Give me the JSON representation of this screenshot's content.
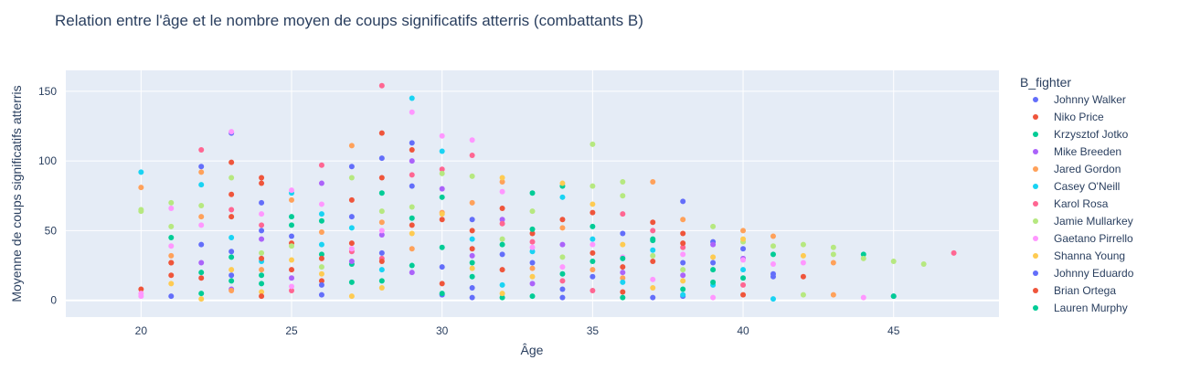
{
  "chart_data": {
    "type": "scatter",
    "title": "Relation entre l'âge et le nombre moyen de coups significatifs atterris (combattants B)",
    "xlabel": "Âge",
    "ylabel": "Moyenne de coups significatifs atterris",
    "xlim": [
      17.5,
      48.5
    ],
    "ylim": [
      -12,
      165
    ],
    "xticks": [
      20,
      25,
      30,
      35,
      40,
      45
    ],
    "yticks": [
      0,
      50,
      100,
      150
    ],
    "grid": true,
    "legend_title": "B_fighter",
    "legend_position": "right",
    "plot_background": "#e5ecf6",
    "series": [
      {
        "name": "Johnny Walker",
        "color": "#636efa",
        "points": [
          [
            21,
            3
          ],
          [
            22,
            96
          ],
          [
            23,
            120
          ],
          [
            23,
            18
          ],
          [
            26,
            4
          ],
          [
            27,
            96
          ],
          [
            28,
            102
          ],
          [
            29,
            113
          ],
          [
            31,
            9
          ],
          [
            34,
            2
          ],
          [
            38,
            71
          ],
          [
            38,
            3
          ],
          [
            39,
            42
          ],
          [
            41,
            19
          ],
          [
            45,
            3
          ],
          [
            30,
            4
          ],
          [
            24,
            70
          ]
        ]
      },
      {
        "name": "Niko Price",
        "color": "#ef553b",
        "points": [
          [
            20,
            8
          ],
          [
            21,
            27
          ],
          [
            21,
            18
          ],
          [
            23,
            99
          ],
          [
            23,
            76
          ],
          [
            24,
            88
          ],
          [
            24,
            84
          ],
          [
            25,
            41
          ],
          [
            28,
            120
          ],
          [
            28,
            88
          ],
          [
            29,
            108
          ],
          [
            30,
            58
          ],
          [
            31,
            50
          ],
          [
            32,
            22
          ],
          [
            35,
            34
          ],
          [
            36,
            6
          ],
          [
            37,
            28
          ],
          [
            38,
            48
          ],
          [
            40,
            4
          ],
          [
            42,
            17
          ],
          [
            26,
            14
          ],
          [
            27,
            41
          ]
        ]
      },
      {
        "name": "Krzysztof Jotko",
        "color": "#00cc96",
        "points": [
          [
            21,
            45
          ],
          [
            22,
            5
          ],
          [
            23,
            31
          ],
          [
            24,
            12
          ],
          [
            25,
            60
          ],
          [
            26,
            33
          ],
          [
            27,
            26
          ],
          [
            28,
            14
          ],
          [
            29,
            59
          ],
          [
            30,
            38
          ],
          [
            31,
            17
          ],
          [
            32,
            2
          ],
          [
            33,
            77
          ],
          [
            34,
            82
          ],
          [
            35,
            53
          ],
          [
            36,
            2
          ],
          [
            37,
            44
          ],
          [
            39,
            22
          ],
          [
            44,
            33
          ],
          [
            45,
            3
          ],
          [
            30,
            74
          ]
        ]
      },
      {
        "name": "Mike Breeden",
        "color": "#ab63fa",
        "points": [
          [
            22,
            27
          ],
          [
            23,
            8
          ],
          [
            24,
            44
          ],
          [
            25,
            16
          ],
          [
            26,
            84
          ],
          [
            27,
            28
          ],
          [
            28,
            47
          ],
          [
            29,
            100
          ],
          [
            30,
            80
          ],
          [
            31,
            32
          ],
          [
            32,
            58
          ],
          [
            33,
            12
          ],
          [
            34,
            40
          ],
          [
            36,
            20
          ],
          [
            38,
            18
          ],
          [
            39,
            40
          ],
          [
            40,
            30
          ],
          [
            29,
            20
          ]
        ]
      },
      {
        "name": "Jared Gordon",
        "color": "#ffa15a",
        "points": [
          [
            20,
            81
          ],
          [
            21,
            32
          ],
          [
            22,
            92
          ],
          [
            22,
            60
          ],
          [
            23,
            7
          ],
          [
            24,
            22
          ],
          [
            25,
            72
          ],
          [
            26,
            49
          ],
          [
            27,
            111
          ],
          [
            28,
            56
          ],
          [
            29,
            37
          ],
          [
            30,
            63
          ],
          [
            31,
            70
          ],
          [
            32,
            85
          ],
          [
            34,
            52
          ],
          [
            35,
            22
          ],
          [
            36,
            16
          ],
          [
            37,
            85
          ],
          [
            38,
            58
          ],
          [
            40,
            50
          ],
          [
            41,
            46
          ],
          [
            43,
            27
          ],
          [
            43,
            4
          ],
          [
            33,
            23
          ]
        ]
      },
      {
        "name": "Casey O'Neill",
        "color": "#19d3f3",
        "points": [
          [
            20,
            92
          ],
          [
            22,
            83
          ],
          [
            23,
            45
          ],
          [
            24,
            28
          ],
          [
            25,
            77
          ],
          [
            26,
            40
          ],
          [
            27,
            52
          ],
          [
            28,
            22
          ],
          [
            29,
            145
          ],
          [
            30,
            107
          ],
          [
            31,
            44
          ],
          [
            32,
            11
          ],
          [
            33,
            35
          ],
          [
            34,
            74
          ],
          [
            35,
            44
          ],
          [
            36,
            13
          ],
          [
            37,
            36
          ],
          [
            38,
            4
          ],
          [
            39,
            11
          ],
          [
            40,
            22
          ],
          [
            41,
            1
          ],
          [
            26,
            62
          ]
        ]
      },
      {
        "name": "Karol Rosa",
        "color": "#ff6692",
        "points": [
          [
            22,
            108
          ],
          [
            23,
            65
          ],
          [
            24,
            54
          ],
          [
            25,
            7
          ],
          [
            26,
            97
          ],
          [
            27,
            35
          ],
          [
            28,
            154
          ],
          [
            29,
            90
          ],
          [
            30,
            94
          ],
          [
            31,
            104
          ],
          [
            32,
            55
          ],
          [
            33,
            42
          ],
          [
            34,
            14
          ],
          [
            35,
            7
          ],
          [
            36,
            62
          ],
          [
            37,
            50
          ],
          [
            38,
            38
          ],
          [
            40,
            11
          ],
          [
            47,
            34
          ],
          [
            28,
            30
          ]
        ]
      },
      {
        "name": "Jamie Mullarkey",
        "color": "#b6e880",
        "points": [
          [
            20,
            65
          ],
          [
            20,
            64
          ],
          [
            21,
            70
          ],
          [
            21,
            53
          ],
          [
            22,
            68
          ],
          [
            23,
            88
          ],
          [
            24,
            34
          ],
          [
            25,
            39
          ],
          [
            26,
            24
          ],
          [
            27,
            88
          ],
          [
            28,
            64
          ],
          [
            29,
            67
          ],
          [
            30,
            91
          ],
          [
            31,
            89
          ],
          [
            32,
            44
          ],
          [
            33,
            64
          ],
          [
            34,
            31
          ],
          [
            35,
            112
          ],
          [
            35,
            82
          ],
          [
            36,
            85
          ],
          [
            37,
            32
          ],
          [
            38,
            22
          ],
          [
            39,
            53
          ],
          [
            40,
            42
          ],
          [
            41,
            39
          ],
          [
            42,
            40
          ],
          [
            42,
            4
          ],
          [
            43,
            38
          ],
          [
            43,
            33
          ],
          [
            44,
            30
          ],
          [
            45,
            28
          ],
          [
            46,
            26
          ],
          [
            36,
            75
          ]
        ]
      },
      {
        "name": "Gaetano Pirrello",
        "color": "#ff97ff",
        "points": [
          [
            20,
            3
          ],
          [
            20,
            5
          ],
          [
            21,
            66
          ],
          [
            21,
            39
          ],
          [
            22,
            54
          ],
          [
            23,
            121
          ],
          [
            24,
            62
          ],
          [
            25,
            79
          ],
          [
            26,
            69
          ],
          [
            27,
            37
          ],
          [
            28,
            50
          ],
          [
            29,
            135
          ],
          [
            30,
            118
          ],
          [
            31,
            115
          ],
          [
            32,
            78
          ],
          [
            33,
            38
          ],
          [
            34,
            24
          ],
          [
            35,
            40
          ],
          [
            36,
            31
          ],
          [
            37,
            15
          ],
          [
            38,
            33
          ],
          [
            39,
            2
          ],
          [
            40,
            29
          ],
          [
            41,
            26
          ],
          [
            42,
            27
          ],
          [
            44,
            2
          ],
          [
            25,
            10
          ]
        ]
      },
      {
        "name": "Shanna Young",
        "color": "#fecb52",
        "points": [
          [
            21,
            12
          ],
          [
            22,
            1
          ],
          [
            23,
            22
          ],
          [
            24,
            6
          ],
          [
            25,
            29
          ],
          [
            26,
            19
          ],
          [
            27,
            3
          ],
          [
            28,
            9
          ],
          [
            29,
            48
          ],
          [
            30,
            62
          ],
          [
            31,
            23
          ],
          [
            32,
            88
          ],
          [
            33,
            17
          ],
          [
            34,
            84
          ],
          [
            35,
            69
          ],
          [
            36,
            40
          ],
          [
            37,
            9
          ],
          [
            38,
            14
          ],
          [
            39,
            31
          ],
          [
            40,
            44
          ],
          [
            42,
            32
          ],
          [
            32,
            5
          ]
        ]
      },
      {
        "name": "Johnny Eduardo",
        "color": "#636efa",
        "points": [
          [
            22,
            40
          ],
          [
            23,
            35
          ],
          [
            24,
            50
          ],
          [
            25,
            46
          ],
          [
            26,
            11
          ],
          [
            27,
            60
          ],
          [
            28,
            34
          ],
          [
            29,
            82
          ],
          [
            30,
            24
          ],
          [
            31,
            58
          ],
          [
            32,
            33
          ],
          [
            33,
            27
          ],
          [
            34,
            8
          ],
          [
            35,
            17
          ],
          [
            36,
            48
          ],
          [
            37,
            2
          ],
          [
            38,
            27
          ],
          [
            39,
            27
          ],
          [
            40,
            37
          ],
          [
            41,
            17
          ],
          [
            31,
            2
          ]
        ]
      },
      {
        "name": "Brian Ortega",
        "color": "#ef553b",
        "points": [
          [
            21,
            27
          ],
          [
            22,
            16
          ],
          [
            23,
            60
          ],
          [
            24,
            30
          ],
          [
            25,
            22
          ],
          [
            26,
            30
          ],
          [
            27,
            72
          ],
          [
            28,
            28
          ],
          [
            29,
            54
          ],
          [
            30,
            12
          ],
          [
            31,
            37
          ],
          [
            32,
            66
          ],
          [
            33,
            48
          ],
          [
            34,
            58
          ],
          [
            35,
            63
          ],
          [
            36,
            24
          ],
          [
            37,
            56
          ],
          [
            38,
            41
          ],
          [
            24,
            3
          ]
        ]
      },
      {
        "name": "Lauren Murphy",
        "color": "#00cc96",
        "points": [
          [
            22,
            20
          ],
          [
            23,
            14
          ],
          [
            24,
            18
          ],
          [
            25,
            54
          ],
          [
            26,
            57
          ],
          [
            27,
            13
          ],
          [
            28,
            77
          ],
          [
            29,
            25
          ],
          [
            30,
            5
          ],
          [
            31,
            27
          ],
          [
            32,
            40
          ],
          [
            33,
            51
          ],
          [
            34,
            19
          ],
          [
            35,
            28
          ],
          [
            36,
            30
          ],
          [
            37,
            43
          ],
          [
            38,
            8
          ],
          [
            39,
            13
          ],
          [
            40,
            16
          ],
          [
            41,
            33
          ],
          [
            33,
            3
          ]
        ]
      }
    ]
  }
}
